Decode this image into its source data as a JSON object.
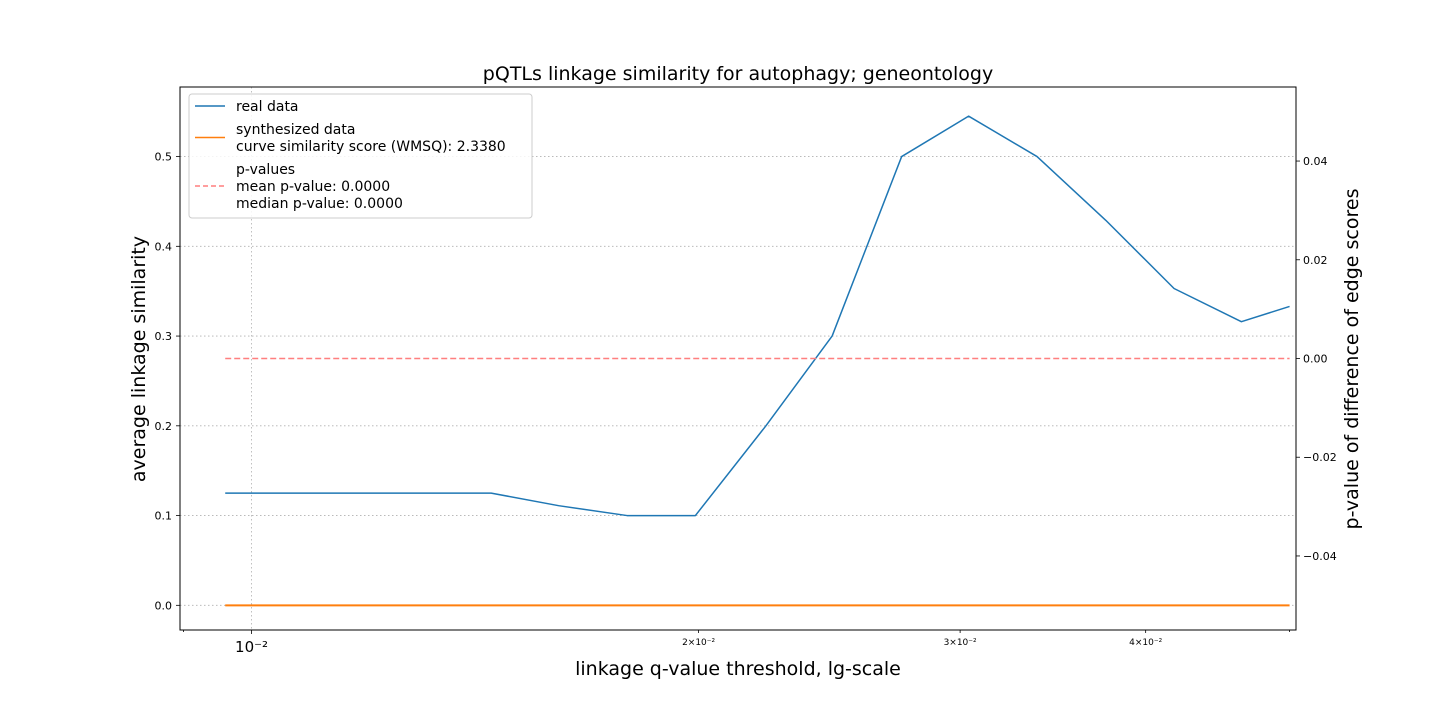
{
  "chart_data": {
    "type": "line",
    "title": "pQTLs linkage similarity for autophagy; geneontology",
    "xlabel": "linkage q-value threshold, lg-scale",
    "ylabel_left": "average linkage similarity",
    "ylabel_right": "p-value of difference of edge scores",
    "x_scale": "log",
    "xlim": [
      0.00895,
      0.0505
    ],
    "ylim_left": [
      -0.0275,
      0.5775
    ],
    "ylim_right": [
      -0.055,
      0.055
    ],
    "grid": true,
    "x_ticks": [
      {
        "value": 0.01,
        "label": "10⁻²",
        "major": true
      },
      {
        "value": 0.02,
        "label": "2×10⁻²",
        "major": false
      },
      {
        "value": 0.03,
        "label": "3×10⁻²",
        "major": false
      },
      {
        "value": 0.04,
        "label": "4×10⁻²",
        "major": false
      }
    ],
    "y_ticks_left": [
      {
        "value": 0.0,
        "label": "0.0"
      },
      {
        "value": 0.1,
        "label": "0.1"
      },
      {
        "value": 0.2,
        "label": "0.2"
      },
      {
        "value": 0.3,
        "label": "0.3"
      },
      {
        "value": 0.4,
        "label": "0.4"
      },
      {
        "value": 0.5,
        "label": "0.5"
      }
    ],
    "y_ticks_right": [
      {
        "value": -0.04,
        "label": "−0.04"
      },
      {
        "value": -0.02,
        "label": "−0.02"
      },
      {
        "value": 0.0,
        "label": "0.00"
      },
      {
        "value": 0.02,
        "label": "0.02"
      },
      {
        "value": 0.04,
        "label": "0.04"
      }
    ],
    "series": [
      {
        "name": "real data",
        "axis": "left",
        "color": "#1f77b4",
        "dash": "solid",
        "x": [
          0.0096,
          0.0118,
          0.0131,
          0.0145,
          0.0161,
          0.0179,
          0.0199,
          0.0222,
          0.0246,
          0.0274,
          0.0304,
          0.0338,
          0.0376,
          0.0418,
          0.0464,
          0.05
        ],
        "y": [
          0.125,
          0.125,
          0.125,
          0.125,
          0.111,
          0.1,
          0.1,
          0.2,
          0.3,
          0.5,
          0.545,
          0.5,
          0.429,
          0.353,
          0.316,
          0.333
        ]
      },
      {
        "name": "synthesized data\ncurve similarity score (WMSQ): 2.3380",
        "axis": "left",
        "color": "#ff7f0e",
        "dash": "solid",
        "x": [
          0.0096,
          0.05
        ],
        "y": [
          0.0,
          0.0
        ]
      },
      {
        "name": "p-values\nmean p-value: 0.0000\nmedian p-value: 0.0000",
        "axis": "right",
        "color": "#ff7f7f",
        "dash": "dashed",
        "x": [
          0.0096,
          0.05
        ],
        "y": [
          0.0,
          0.0
        ]
      }
    ],
    "legend": {
      "placement": "upper-left",
      "entries": [
        {
          "lines": [
            "real data"
          ],
          "color": "#1f77b4",
          "dash": "solid"
        },
        {
          "lines": [
            "synthesized data",
            "curve similarity score (WMSQ): 2.3380"
          ],
          "color": "#ff7f0e",
          "dash": "solid"
        },
        {
          "lines": [
            "p-values",
            "mean p-value: 0.0000",
            "median p-value: 0.0000"
          ],
          "color": "#ff7f7f",
          "dash": "dashed"
        }
      ]
    }
  }
}
